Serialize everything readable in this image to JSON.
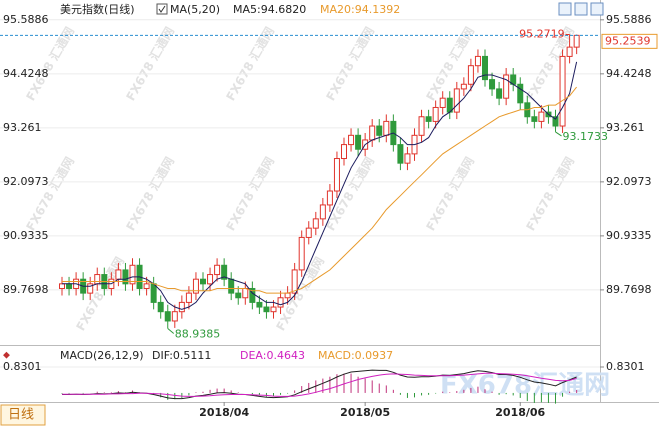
{
  "watermark": "FX678 汇通网",
  "logo": "FX678汇通网",
  "period_tab": "日线",
  "chart_data": [
    {
      "type": "candlestick",
      "title": "美元指数(日线)",
      "indicator_label": "MA(5,20)",
      "categories": [
        null,
        null,
        null,
        null,
        null,
        null,
        null,
        null,
        null,
        null,
        null,
        null,
        null,
        null,
        null,
        null,
        null,
        null,
        null,
        null,
        null,
        null,
        null,
        "2018/04",
        null,
        null,
        null,
        null,
        null,
        null,
        null,
        null,
        null,
        null,
        null,
        null,
        null,
        null,
        null,
        null,
        null,
        null,
        null,
        "2018/05",
        null,
        null,
        null,
        null,
        null,
        null,
        null,
        null,
        null,
        null,
        null,
        null,
        null,
        null,
        null,
        null,
        null,
        null,
        null,
        null,
        null,
        "2018/06",
        null,
        null,
        null,
        null,
        null,
        null,
        null,
        null
      ],
      "open": [
        89.8,
        89.9,
        89.8,
        90.0,
        89.7,
        89.9,
        90.1,
        89.8,
        90.0,
        90.2,
        89.9,
        90.3,
        89.8,
        89.9,
        89.5,
        89.3,
        89.1,
        89.3,
        89.5,
        89.7,
        90.0,
        89.9,
        90.1,
        90.3,
        90.0,
        89.7,
        89.6,
        89.8,
        89.5,
        89.4,
        89.3,
        89.4,
        89.6,
        89.7,
        90.2,
        90.9,
        91.1,
        91.3,
        91.6,
        91.9,
        92.6,
        92.9,
        93.1,
        92.8,
        93.0,
        93.3,
        93.1,
        93.4,
        92.9,
        92.5,
        92.7,
        93.1,
        93.5,
        93.4,
        93.7,
        93.9,
        93.6,
        94.1,
        94.2,
        94.6,
        94.8,
        94.3,
        94.1,
        93.9,
        94.4,
        94.2,
        93.8,
        93.5,
        93.4,
        93.6,
        93.5,
        93.3,
        94.8,
        95.0
      ],
      "high": [
        90.05,
        90.05,
        90.15,
        90.15,
        90.05,
        90.25,
        90.25,
        90.15,
        90.35,
        90.35,
        90.45,
        90.45,
        90.05,
        90.05,
        89.65,
        89.45,
        89.45,
        89.65,
        89.85,
        90.15,
        90.15,
        90.25,
        90.45,
        90.45,
        90.15,
        89.85,
        89.95,
        89.95,
        89.65,
        89.55,
        89.55,
        89.75,
        89.85,
        90.35,
        91.05,
        91.25,
        91.45,
        91.75,
        92.05,
        92.75,
        93.05,
        93.25,
        93.25,
        93.15,
        93.45,
        93.45,
        93.55,
        93.55,
        93.05,
        92.85,
        93.25,
        93.65,
        93.65,
        93.85,
        94.05,
        94.05,
        94.25,
        94.35,
        94.75,
        94.95,
        94.95,
        94.45,
        94.25,
        94.55,
        94.55,
        94.35,
        93.95,
        93.65,
        93.75,
        93.75,
        93.65,
        94.95,
        95.2719,
        95.27
      ],
      "low": [
        89.65,
        89.65,
        89.65,
        89.55,
        89.55,
        89.75,
        89.65,
        89.65,
        89.85,
        89.75,
        89.75,
        89.65,
        89.65,
        89.35,
        89.15,
        88.9385,
        88.95,
        89.15,
        89.35,
        89.55,
        89.75,
        89.75,
        89.95,
        89.85,
        89.55,
        89.45,
        89.45,
        89.35,
        89.25,
        89.15,
        89.15,
        89.25,
        89.45,
        89.55,
        90.05,
        90.75,
        90.95,
        91.15,
        91.45,
        91.75,
        92.45,
        92.75,
        92.65,
        92.65,
        92.85,
        92.95,
        92.95,
        92.75,
        92.35,
        92.35,
        92.55,
        92.95,
        93.25,
        93.25,
        93.55,
        93.45,
        93.45,
        93.95,
        94.05,
        94.45,
        94.15,
        93.95,
        93.75,
        93.75,
        94.05,
        93.65,
        93.35,
        93.25,
        93.25,
        93.35,
        93.1733,
        93.15,
        94.65,
        94.85
      ],
      "close": [
        89.9,
        89.8,
        90.0,
        89.7,
        89.9,
        90.1,
        89.8,
        90.0,
        90.2,
        89.9,
        90.3,
        89.8,
        89.9,
        89.5,
        89.3,
        89.1,
        89.3,
        89.5,
        89.7,
        90.0,
        89.9,
        90.1,
        90.3,
        90.0,
        89.7,
        89.6,
        89.8,
        89.5,
        89.4,
        89.3,
        89.4,
        89.6,
        89.7,
        90.2,
        90.9,
        91.1,
        91.3,
        91.6,
        91.9,
        92.6,
        92.9,
        93.1,
        92.8,
        93.0,
        93.3,
        93.1,
        93.4,
        92.9,
        92.5,
        92.7,
        93.1,
        93.5,
        93.4,
        93.7,
        93.9,
        93.6,
        94.1,
        94.2,
        94.6,
        94.8,
        94.3,
        94.1,
        93.9,
        94.4,
        94.2,
        93.8,
        93.5,
        93.4,
        93.6,
        93.5,
        93.3,
        94.8,
        95.0,
        95.2539
      ],
      "up_color": "#e0342c",
      "down_color": "#2f9a3c",
      "series": [
        {
          "name": "MA5:94.6820",
          "color": "#1c1c5e",
          "values": [
            89.9,
            89.9,
            89.9,
            89.85,
            89.85,
            89.9,
            89.9,
            89.9,
            90.0,
            90.0,
            90.05,
            90.05,
            90.0,
            89.9,
            89.75,
            89.5,
            89.4,
            89.35,
            89.4,
            89.5,
            89.7,
            89.85,
            90.0,
            90.05,
            90.0,
            89.95,
            89.9,
            89.7,
            89.6,
            89.5,
            89.5,
            89.45,
            89.5,
            89.65,
            89.95,
            90.3,
            90.65,
            91.0,
            91.35,
            91.7,
            92.05,
            92.4,
            92.65,
            92.9,
            93.0,
            93.05,
            93.1,
            93.15,
            93.05,
            92.9,
            92.9,
            92.95,
            93.05,
            93.3,
            93.5,
            93.6,
            93.75,
            93.9,
            94.1,
            94.35,
            94.4,
            94.4,
            94.35,
            94.3,
            94.2,
            94.1,
            94.0,
            93.85,
            93.7,
            93.55,
            93.45,
            93.7,
            94.0,
            94.682
          ]
        },
        {
          "name": "MA20:94.1392",
          "color": "#e89a2c",
          "values": [
            89.95,
            89.95,
            89.95,
            89.95,
            89.95,
            89.95,
            89.95,
            89.95,
            89.95,
            89.95,
            89.95,
            89.95,
            89.95,
            89.9,
            89.85,
            89.8,
            89.8,
            89.75,
            89.75,
            89.75,
            89.75,
            89.75,
            89.8,
            89.8,
            89.8,
            89.8,
            89.8,
            89.75,
            89.75,
            89.7,
            89.7,
            89.7,
            89.7,
            89.75,
            89.8,
            89.9,
            90.0,
            90.1,
            90.2,
            90.35,
            90.5,
            90.65,
            90.8,
            90.95,
            91.1,
            91.3,
            91.5,
            91.65,
            91.8,
            91.95,
            92.1,
            92.25,
            92.4,
            92.55,
            92.7,
            92.8,
            92.9,
            93.0,
            93.1,
            93.2,
            93.3,
            93.4,
            93.5,
            93.55,
            93.6,
            93.65,
            93.65,
            93.7,
            93.7,
            93.75,
            93.75,
            93.85,
            93.95,
            94.1392
          ]
        }
      ],
      "annotations": [
        95.2719,
        93.1733,
        88.9385
      ],
      "last_price": 95.2539,
      "ylim": [
        88.69,
        95.8
      ],
      "yticks": [
        95.5886,
        94.4248,
        93.261,
        92.0973,
        90.9335,
        89.7698
      ]
    },
    {
      "type": "macd",
      "indicator_label": "MACD(26,12,9)",
      "series": [
        {
          "name": "DIF:0.5111",
          "color": "#222222",
          "values": [
            -0.05,
            -0.05,
            -0.04,
            -0.05,
            -0.04,
            -0.02,
            -0.03,
            -0.02,
            0.0,
            -0.01,
            0.02,
            0.0,
            -0.01,
            -0.05,
            -0.1,
            -0.16,
            -0.18,
            -0.18,
            -0.15,
            -0.1,
            -0.08,
            -0.04,
            0.0,
            0.01,
            -0.01,
            -0.04,
            -0.05,
            -0.08,
            -0.11,
            -0.14,
            -0.15,
            -0.14,
            -0.12,
            -0.06,
            0.04,
            0.13,
            0.22,
            0.31,
            0.4,
            0.51,
            0.6,
            0.67,
            0.69,
            0.71,
            0.73,
            0.72,
            0.72,
            0.66,
            0.57,
            0.51,
            0.5,
            0.52,
            0.52,
            0.54,
            0.57,
            0.56,
            0.59,
            0.62,
            0.67,
            0.71,
            0.69,
            0.65,
            0.59,
            0.59,
            0.56,
            0.5,
            0.42,
            0.35,
            0.32,
            0.28,
            0.23,
            0.33,
            0.42,
            0.5111
          ]
        },
        {
          "name": "DEA:0.4643",
          "color": "#d020c0",
          "values": [
            -0.04,
            -0.04,
            -0.04,
            -0.04,
            -0.04,
            -0.04,
            -0.04,
            -0.03,
            -0.03,
            -0.02,
            -0.02,
            -0.01,
            -0.01,
            -0.02,
            -0.03,
            -0.05,
            -0.08,
            -0.1,
            -0.11,
            -0.11,
            -0.1,
            -0.09,
            -0.07,
            -0.06,
            -0.05,
            -0.05,
            -0.05,
            -0.06,
            -0.07,
            -0.08,
            -0.1,
            -0.11,
            -0.11,
            -0.1,
            -0.07,
            -0.03,
            0.02,
            0.08,
            0.14,
            0.21,
            0.29,
            0.36,
            0.43,
            0.48,
            0.53,
            0.57,
            0.6,
            0.61,
            0.6,
            0.59,
            0.57,
            0.56,
            0.55,
            0.55,
            0.55,
            0.55,
            0.56,
            0.57,
            0.59,
            0.61,
            0.63,
            0.63,
            0.62,
            0.61,
            0.6,
            0.58,
            0.55,
            0.51,
            0.47,
            0.44,
            0.4,
            0.39,
            0.4,
            0.4643
          ]
        },
        {
          "name": "MACD:0.0937",
          "color": "#e89a2c",
          "bar": true,
          "values": [
            -0.02,
            -0.02,
            0,
            -0.02,
            0,
            0.04,
            0.02,
            0.02,
            0.06,
            0.02,
            0.08,
            0.02,
            0,
            -0.06,
            -0.14,
            -0.22,
            -0.2,
            -0.16,
            -0.08,
            0.02,
            0.04,
            0.1,
            0.14,
            0.14,
            0.08,
            0.02,
            0,
            -0.04,
            -0.08,
            -0.12,
            -0.1,
            -0.06,
            -0.02,
            0.08,
            0.22,
            0.32,
            0.4,
            0.46,
            0.52,
            0.6,
            0.62,
            0.62,
            0.52,
            0.46,
            0.4,
            0.3,
            0.24,
            0.1,
            -0.06,
            -0.16,
            -0.14,
            -0.08,
            -0.06,
            -0.02,
            0.04,
            0.02,
            0.06,
            0.1,
            0.16,
            0.2,
            0.12,
            0.04,
            -0.06,
            -0.04,
            -0.08,
            -0.16,
            -0.26,
            -0.32,
            -0.3,
            -0.32,
            -0.34,
            -0.12,
            0.04,
            0.0937
          ]
        }
      ],
      "up_color": "#c0307a",
      "down_color": "#2f9a3c",
      "ylim": [
        -0.29,
        1.31
      ],
      "yticks": [
        0.8301
      ]
    }
  ]
}
